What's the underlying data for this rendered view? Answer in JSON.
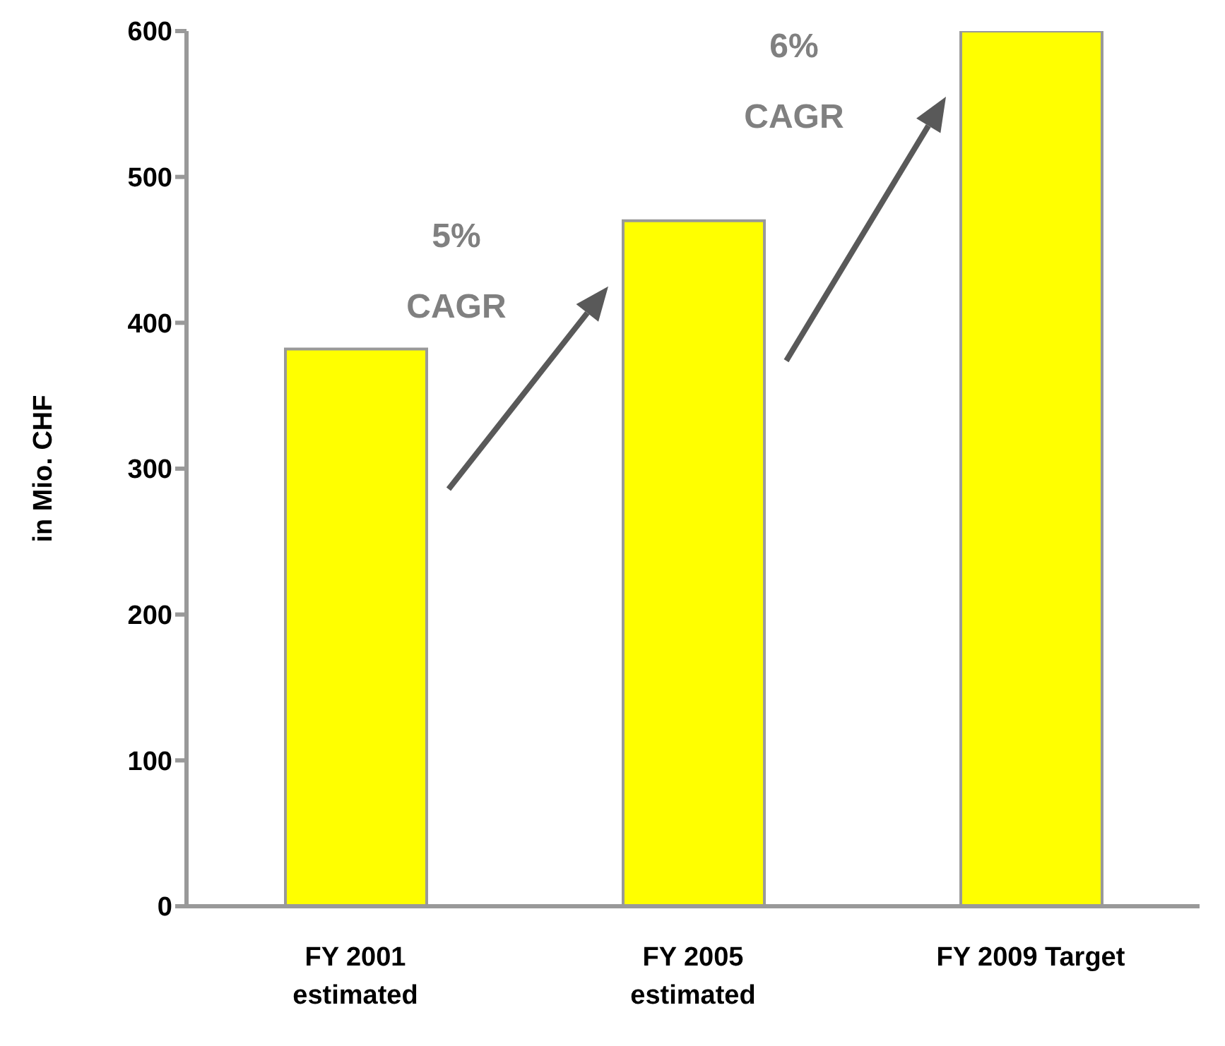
{
  "chart_data": {
    "type": "bar",
    "ylabel": "in Mio. CHF",
    "categories": [
      "FY 2001 estimated",
      "FY 2005 estimated",
      "FY 2009 Target"
    ],
    "values": [
      382,
      470,
      600
    ],
    "color": "#ffff00",
    "ylim": [
      0,
      600
    ],
    "yticks": [
      0,
      100,
      200,
      300,
      400,
      500,
      600
    ],
    "annotations": [
      "5%\nCAGR",
      "6%\nCAGR"
    ]
  }
}
